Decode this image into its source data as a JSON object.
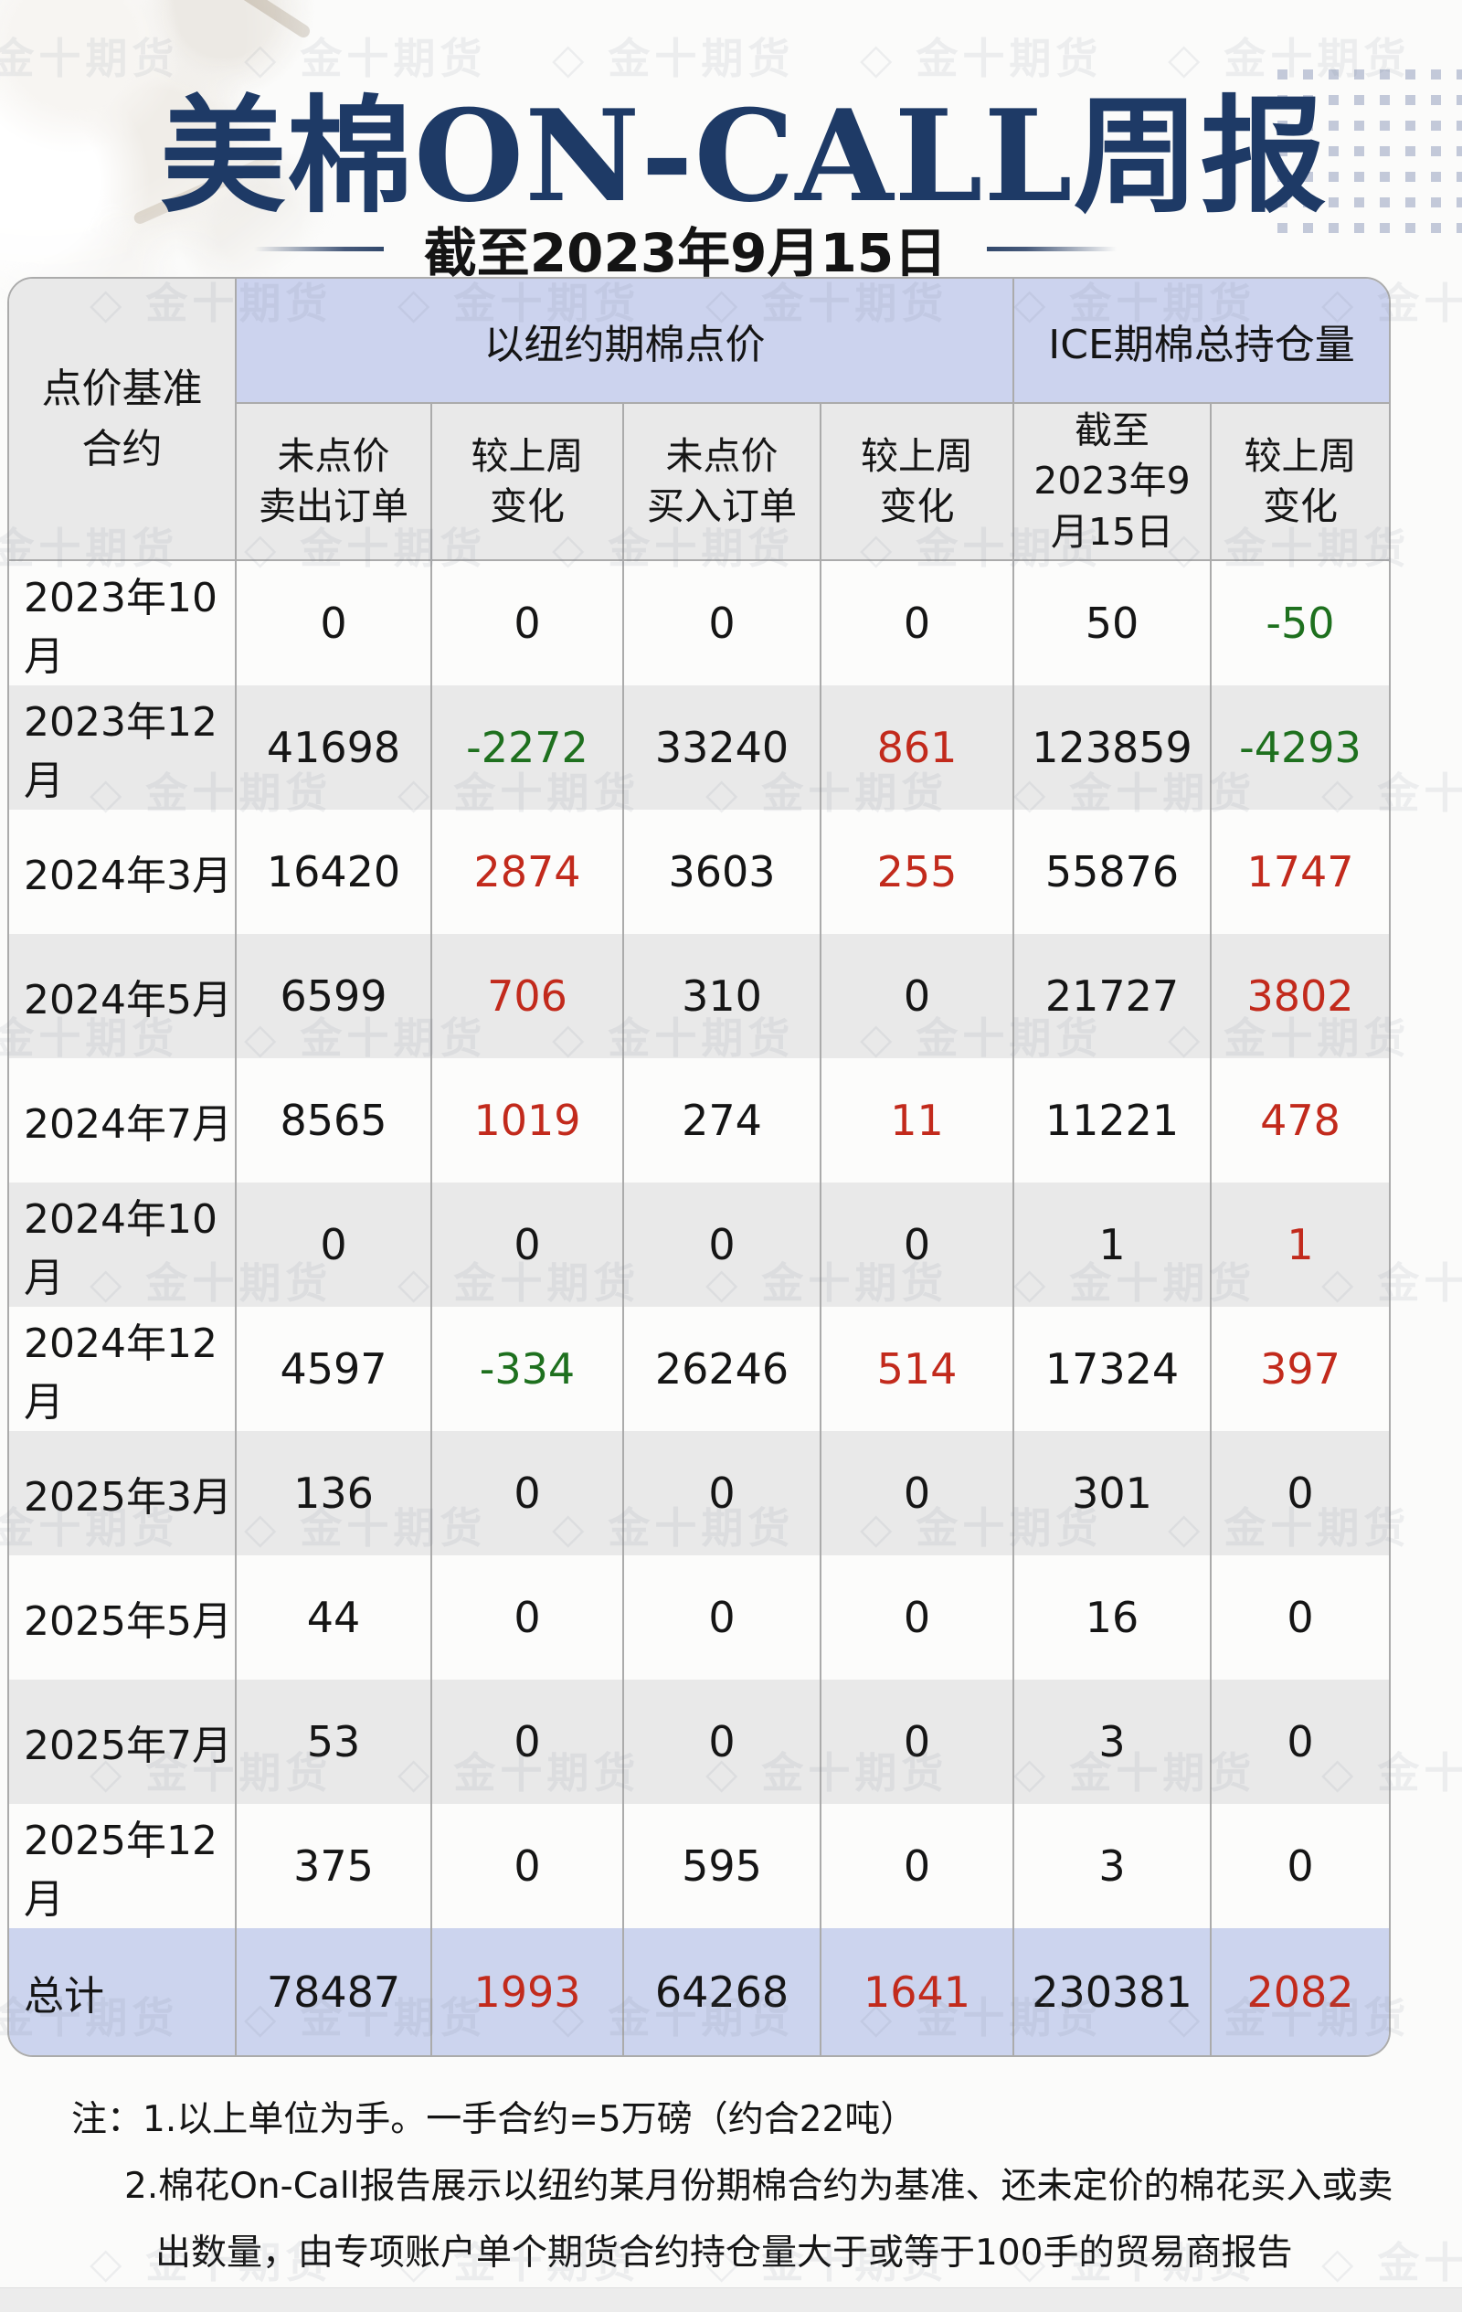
{
  "header": {
    "title": "美棉ON-CALL周报",
    "subtitle": "截至2023年9月15日"
  },
  "table": {
    "corner_header": "点价基准\n合约",
    "group_headers": {
      "ny": "以纽约期棉点价",
      "ice": "ICE期棉总持仓量"
    },
    "col_headers": [
      "未点价\n卖出订单",
      "较上周\n变化",
      "未点价\n买入订单",
      "较上周\n变化",
      "截至\n2023年9\n月15日",
      "较上周\n变化"
    ],
    "rows": [
      {
        "label": "2023年10月",
        "values": [
          "0",
          "0",
          "0",
          "0",
          "50",
          "-50"
        ]
      },
      {
        "label": "2023年12月",
        "values": [
          "41698",
          "-2272",
          "33240",
          "861",
          "123859",
          "-4293"
        ]
      },
      {
        "label": "2024年3月",
        "values": [
          "16420",
          "2874",
          "3603",
          "255",
          "55876",
          "1747"
        ]
      },
      {
        "label": "2024年5月",
        "values": [
          "6599",
          "706",
          "310",
          "0",
          "21727",
          "3802"
        ]
      },
      {
        "label": "2024年7月",
        "values": [
          "8565",
          "1019",
          "274",
          "11",
          "11221",
          "478"
        ]
      },
      {
        "label": "2024年10月",
        "values": [
          "0",
          "0",
          "0",
          "0",
          "1",
          "1"
        ]
      },
      {
        "label": "2024年12月",
        "values": [
          "4597",
          "-334",
          "26246",
          "514",
          "17324",
          "397"
        ]
      },
      {
        "label": "2025年3月",
        "values": [
          "136",
          "0",
          "0",
          "0",
          "301",
          "0"
        ]
      },
      {
        "label": "2025年5月",
        "values": [
          "44",
          "0",
          "0",
          "0",
          "16",
          "0"
        ]
      },
      {
        "label": "2025年7月",
        "values": [
          "53",
          "0",
          "0",
          "0",
          "3",
          "0"
        ]
      },
      {
        "label": "2025年12月",
        "values": [
          "375",
          "0",
          "595",
          "0",
          "3",
          "0"
        ]
      }
    ],
    "total": {
      "label": "总计",
      "values": [
        "78487",
        "1993",
        "64268",
        "1641",
        "230381",
        "2082"
      ]
    }
  },
  "notes": {
    "label": "注：",
    "lines": [
      "1.以上单位为手。一手合约=5万磅（约合22吨）",
      "2.棉花On-Call报告展示以纽约某月份期棉合约为基准、还未定价的棉花买入或卖",
      "出数量，由专项账户单个期货合约持仓量大于或等于100手的贸易商报告"
    ]
  },
  "watermark": {
    "icon": "◇",
    "text": "金十期货"
  },
  "colors": {
    "increase": "#c22a1c",
    "decrease": "#1e701e",
    "header_band": "#ccd3ee",
    "header_gray": "#e9e9e9",
    "total_band": "#ccd4ee",
    "title_navy": "#1e3a66"
  },
  "chart_data": {
    "type": "table",
    "title": "美棉ON-CALL周报",
    "as_of": "截至2023年9月15日",
    "unit_note": "单位为手，一手合约=5万磅（约合22吨）",
    "column_groups": [
      "以纽约期棉点价",
      "ICE期棉总持仓量"
    ],
    "columns": [
      "点价基准合约",
      "未点价卖出订单",
      "较上周变化",
      "未点价买入订单",
      "较上周变化",
      "截至2023年9月15日总持仓",
      "较上周变化"
    ],
    "rows": [
      [
        "2023年10月",
        0,
        0,
        0,
        0,
        50,
        -50
      ],
      [
        "2023年12月",
        41698,
        -2272,
        33240,
        861,
        123859,
        -4293
      ],
      [
        "2024年3月",
        16420,
        2874,
        3603,
        255,
        55876,
        1747
      ],
      [
        "2024年5月",
        6599,
        706,
        310,
        0,
        21727,
        3802
      ],
      [
        "2024年7月",
        8565,
        1019,
        274,
        11,
        11221,
        478
      ],
      [
        "2024年10月",
        0,
        0,
        0,
        0,
        1,
        1
      ],
      [
        "2024年12月",
        4597,
        -334,
        26246,
        514,
        17324,
        397
      ],
      [
        "2025年3月",
        136,
        0,
        0,
        0,
        301,
        0
      ],
      [
        "2025年5月",
        44,
        0,
        0,
        0,
        16,
        0
      ],
      [
        "2025年7月",
        53,
        0,
        0,
        0,
        3,
        0
      ],
      [
        "2025年12月",
        375,
        0,
        595,
        0,
        3,
        0
      ],
      [
        "总计",
        78487,
        1993,
        64268,
        1641,
        230381,
        2082
      ]
    ],
    "color_rule": "变化列：负值绿色，正值红色，零黑色"
  }
}
